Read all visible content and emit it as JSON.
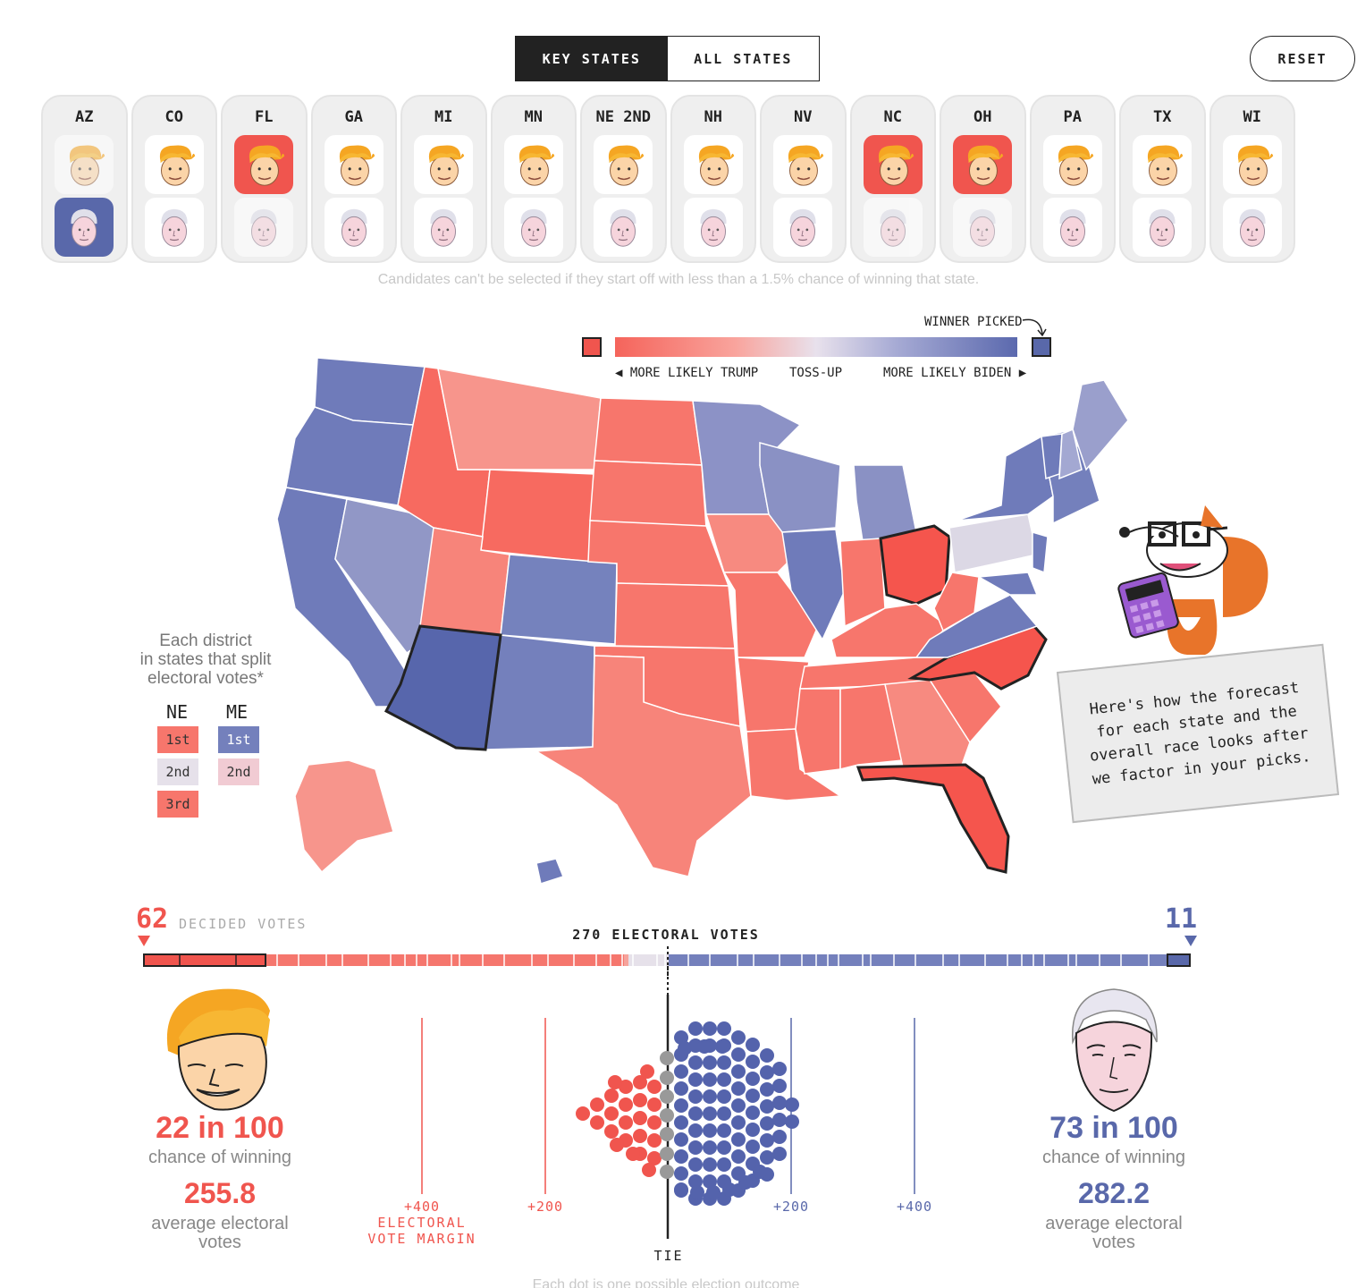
{
  "tabs": {
    "key_states": "KEY STATES",
    "all_states": "ALL STATES"
  },
  "reset_label": "RESET",
  "states": [
    {
      "code": "AZ",
      "selected": "biden"
    },
    {
      "code": "CO",
      "selected": null
    },
    {
      "code": "FL",
      "selected": "trump"
    },
    {
      "code": "GA",
      "selected": null
    },
    {
      "code": "MI",
      "selected": null
    },
    {
      "code": "MN",
      "selected": null
    },
    {
      "code": "NE 2ND",
      "selected": null
    },
    {
      "code": "NH",
      "selected": null
    },
    {
      "code": "NV",
      "selected": null
    },
    {
      "code": "NC",
      "selected": "trump"
    },
    {
      "code": "OH",
      "selected": "trump"
    },
    {
      "code": "PA",
      "selected": null
    },
    {
      "code": "TX",
      "selected": null
    },
    {
      "code": "WI",
      "selected": null
    }
  ],
  "note": "Candidates can't be selected if they start off with less than a 1.5% chance of winning that state.",
  "legend": {
    "winner_picked": "WINNER PICKED",
    "more_likely_trump": "MORE LIKELY TRUMP",
    "toss_up": "TOSS-UP",
    "more_likely_biden": "MORE LIKELY BIDEN"
  },
  "split": {
    "title_line1": "Each district",
    "title_line2": "in states that split",
    "title_line3": "electoral votes*",
    "ne": "NE",
    "me": "ME",
    "ne_districts": [
      "1st",
      "2nd",
      "3rd"
    ],
    "me_districts": [
      "1st",
      "2nd"
    ]
  },
  "speech": "Here's how the forecast for each state and the overall race looks after we factor in your picks.",
  "votebar": {
    "trump_decided": "62",
    "decided_label": "DECIDED VOTES",
    "biden_decided": "11",
    "ev_270": "270 ELECTORAL VOTES"
  },
  "trump": {
    "chance": "22 in 100",
    "chance_label": "chance of winning",
    "avg": "255.8",
    "avg_label1": "average electoral",
    "avg_label2": "votes"
  },
  "biden": {
    "chance": "73 in 100",
    "chance_label": "chance of winning",
    "avg": "282.2",
    "avg_label1": "average electoral",
    "avg_label2": "votes"
  },
  "margin_axis": {
    "t400": "+400",
    "t200": "+200",
    "b200": "+200",
    "b400": "+400",
    "label1": "ELECTORAL",
    "label2": "VOTE MARGIN",
    "tie": "TIE"
  },
  "footnote": "Each dot is one possible election outcome",
  "colors": {
    "trump": "#f0554e",
    "biden": "#5968aa",
    "tossup": "#e8e1ec"
  }
}
